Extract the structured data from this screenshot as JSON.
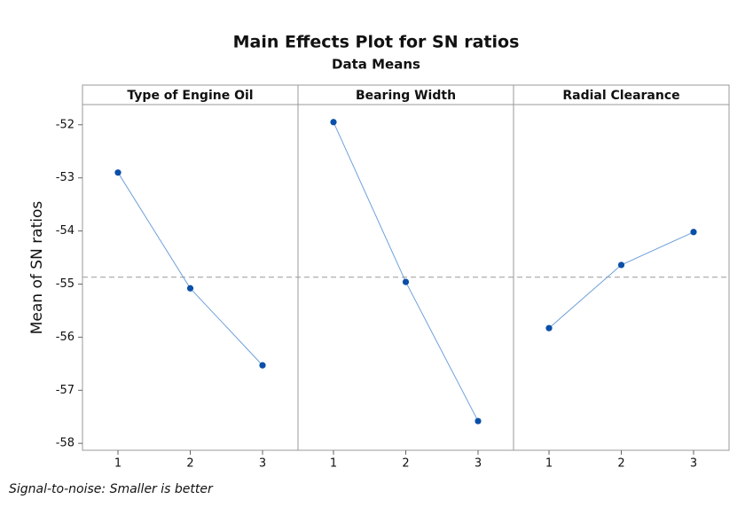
{
  "chart_data": {
    "type": "line",
    "title": "Main Effects Plot for SN ratios",
    "subtitle": "Data Means",
    "ylabel": "Mean of SN ratios",
    "footnote": "Signal-to-noise: Smaller is better",
    "ylim": [
      -58.13,
      -51.62
    ],
    "yticks": [
      -58,
      -57,
      -56,
      -55,
      -54,
      -53,
      -52
    ],
    "reference_line": -54.87,
    "color": "#0a4fa8",
    "line_color": "#6fa0da",
    "panels": [
      {
        "title": "Type of Engine Oil",
        "categories": [
          "1",
          "2",
          "3"
        ],
        "values": [
          -52.9,
          -55.08,
          -56.53
        ]
      },
      {
        "title": "Bearing Width",
        "categories": [
          "1",
          "2",
          "3"
        ],
        "values": [
          -51.95,
          -54.96,
          -57.58
        ]
      },
      {
        "title": "Radial Clearance",
        "categories": [
          "1",
          "2",
          "3"
        ],
        "values": [
          -55.83,
          -54.64,
          -54.02
        ]
      }
    ]
  }
}
